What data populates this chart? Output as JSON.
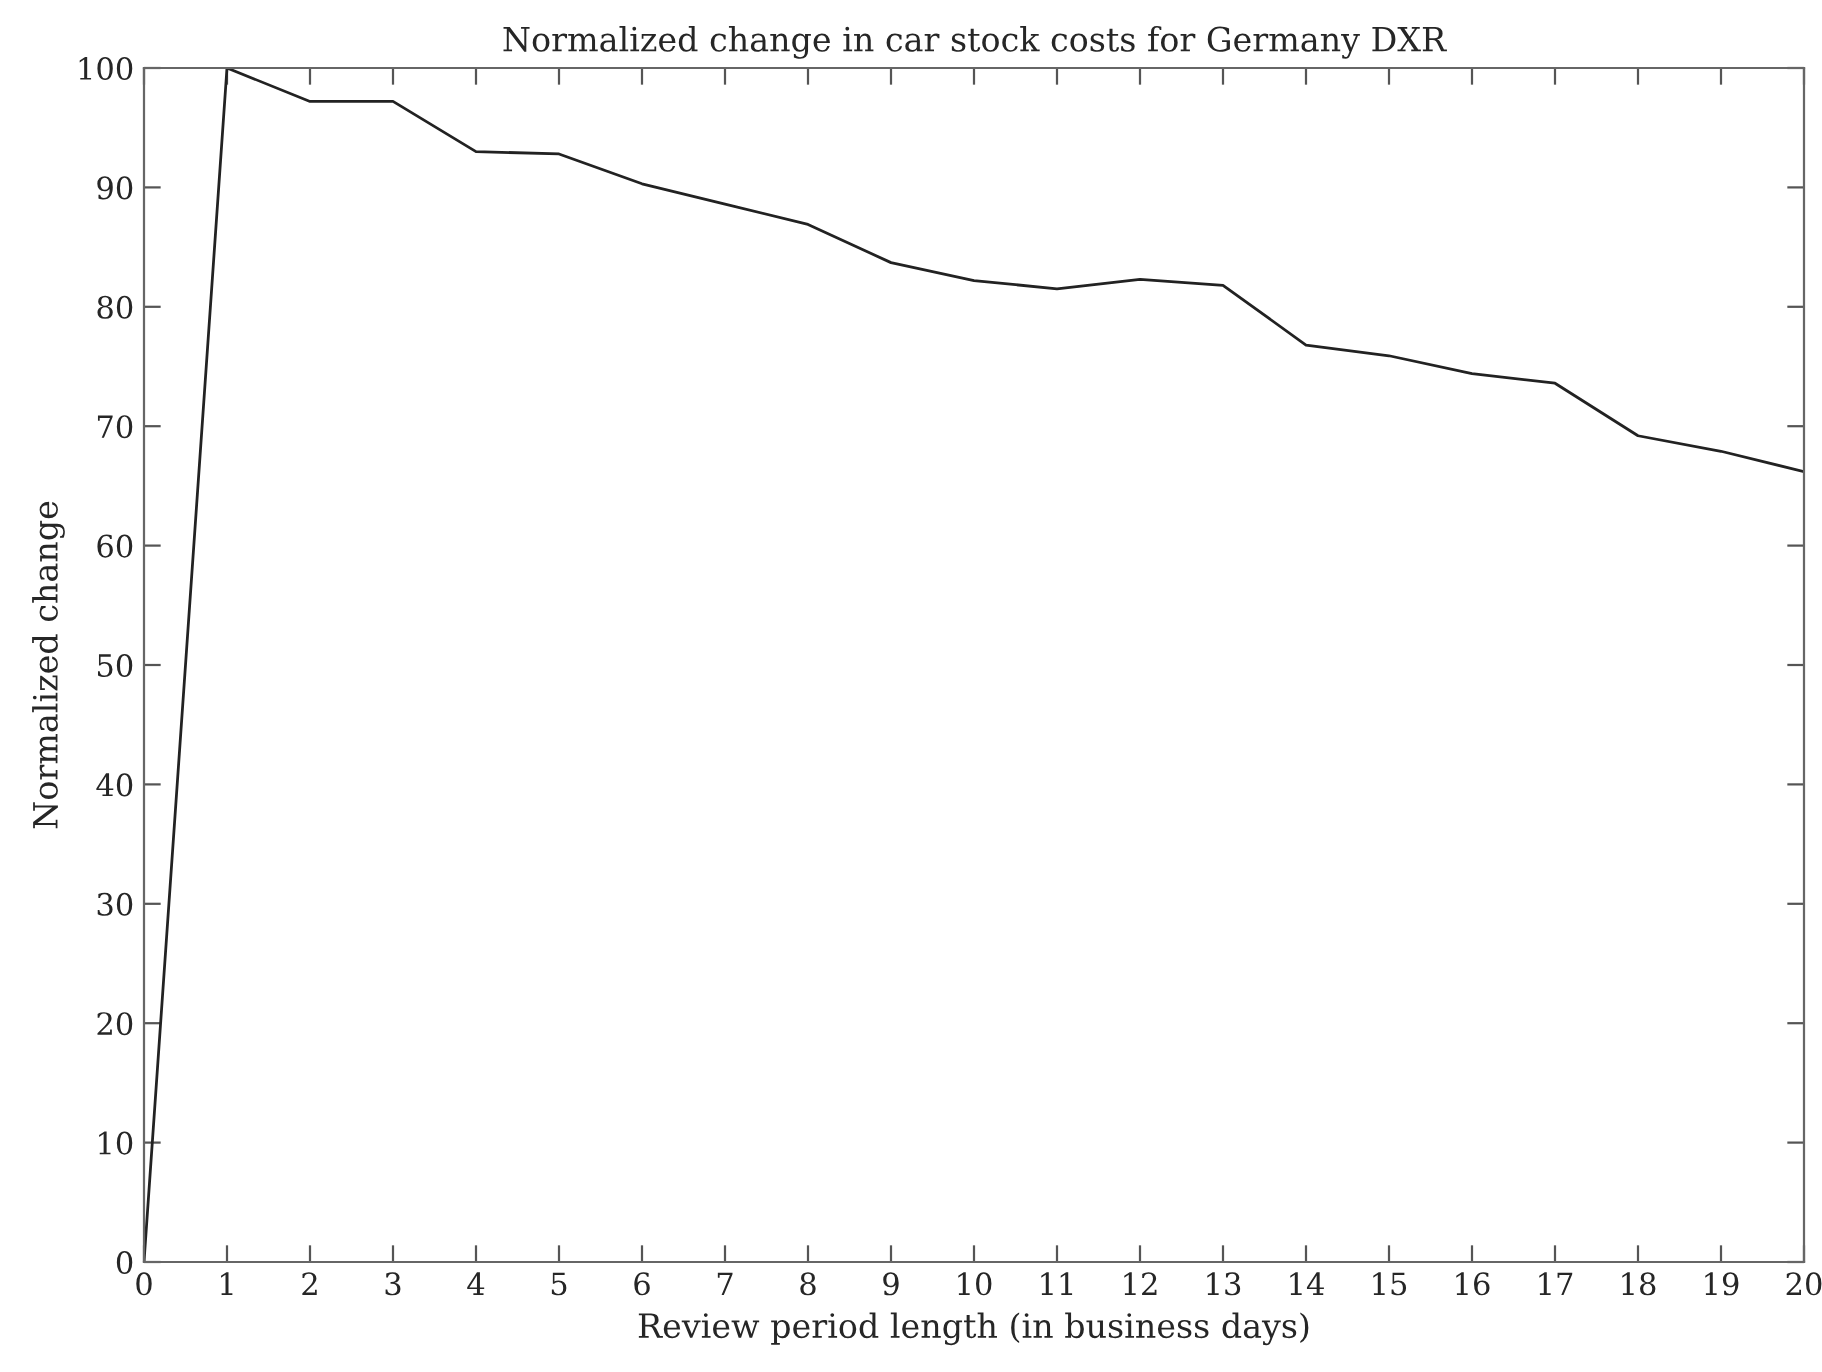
{
  "chart_data": {
    "type": "line",
    "title": "Normalized change in car stock costs for Germany DXR",
    "xlabel": "Review period length (in business days)",
    "ylabel": "Normalized change",
    "x": [
      0,
      1,
      2,
      3,
      4,
      5,
      6,
      7,
      8,
      9,
      10,
      11,
      12,
      13,
      14,
      15,
      16,
      17,
      18,
      19,
      20
    ],
    "series": [
      {
        "color": "#222222",
        "values": [
          0,
          100,
          97.2,
          97.2,
          93,
          92.8,
          90.3,
          88.6,
          86.9,
          83.7,
          82.2,
          81.5,
          82.3,
          81.8,
          76.8,
          75.9,
          74.4,
          73.6,
          69.2,
          67.9,
          66.2
        ]
      }
    ],
    "xlim": [
      0,
      20
    ],
    "xticks": [
      0,
      1,
      2,
      3,
      4,
      5,
      6,
      7,
      8,
      9,
      10,
      11,
      12,
      13,
      14,
      15,
      16,
      17,
      18,
      19,
      20
    ],
    "ylim": [
      0,
      100
    ],
    "yticks": [
      0,
      10,
      20,
      30,
      40,
      50,
      60,
      70,
      80,
      90,
      100
    ],
    "marker": "none",
    "line_style": "solid"
  }
}
